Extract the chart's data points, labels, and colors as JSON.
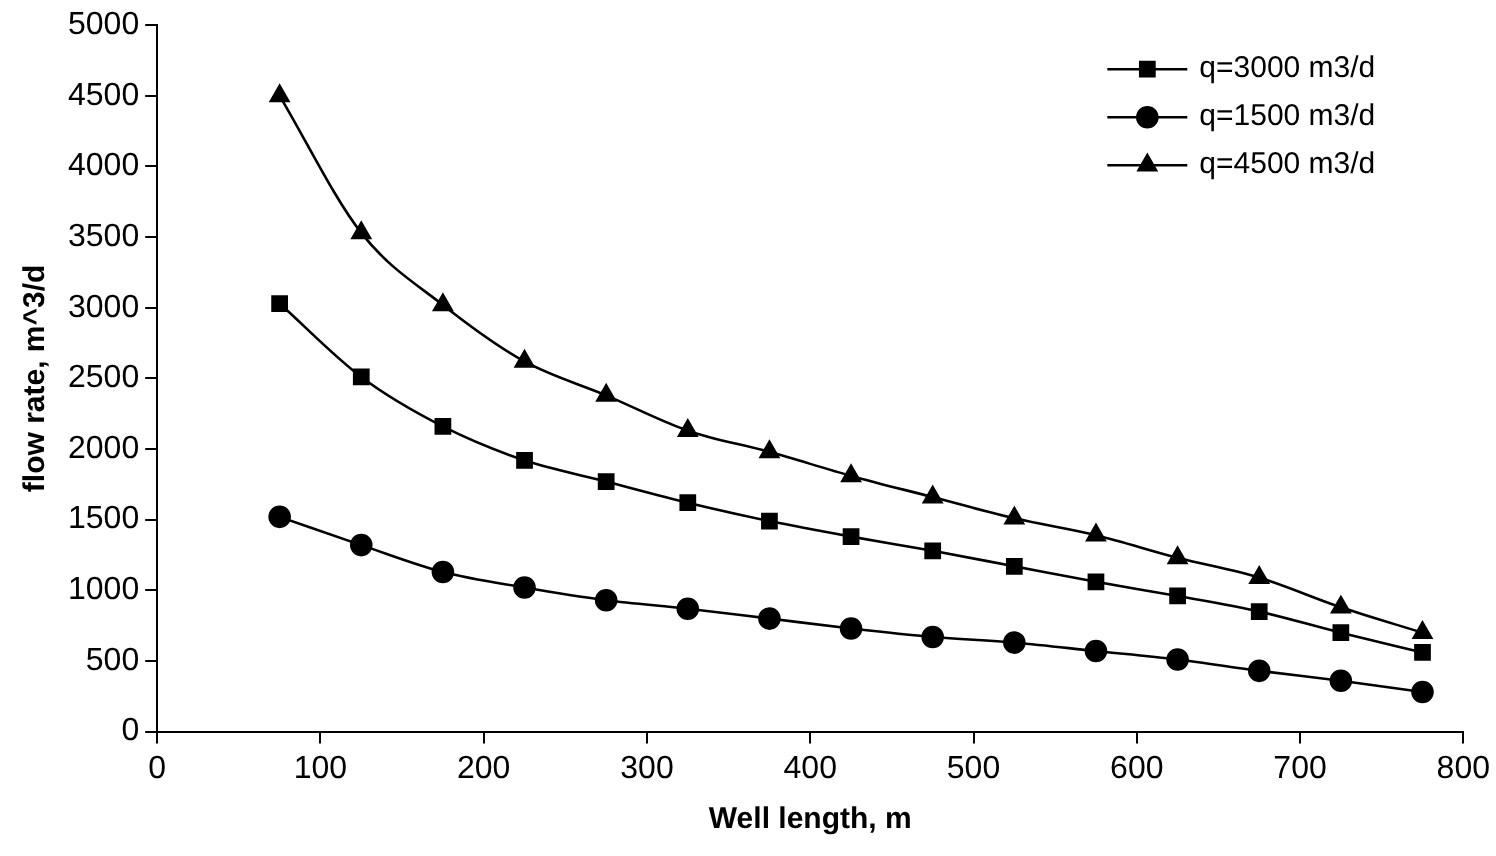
{
  "chart_data": {
    "type": "line",
    "xlabel": "Well length, m",
    "ylabel": "flow rate, m^3/d",
    "x": [
      75,
      125,
      175,
      225,
      275,
      325,
      375,
      425,
      475,
      525,
      575,
      625,
      675,
      725,
      775
    ],
    "series": [
      {
        "name": "q=3000 m3/d",
        "color": "#000000",
        "marker": "square",
        "values": [
          3030,
          2510,
          2160,
          1920,
          1770,
          1620,
          1490,
          1380,
          1280,
          1170,
          1060,
          960,
          850,
          700,
          560
        ]
      },
      {
        "name": "q=1500 m3/d",
        "color": "#000000",
        "marker": "circle",
        "values": [
          1520,
          1320,
          1130,
          1020,
          930,
          870,
          800,
          730,
          670,
          630,
          570,
          510,
          430,
          360,
          280
        ]
      },
      {
        "name": "q=4500 m3/d",
        "color": "#000000",
        "marker": "triangle",
        "values": [
          4500,
          3530,
          3020,
          2620,
          2380,
          2130,
          1980,
          1810,
          1660,
          1510,
          1390,
          1230,
          1090,
          880,
          700
        ]
      }
    ],
    "xlim": [
      0,
      800
    ],
    "xticks": [
      0,
      100,
      200,
      300,
      400,
      500,
      600,
      700,
      800
    ],
    "ylim": [
      0,
      5000
    ],
    "yticks": [
      0,
      500,
      1000,
      1500,
      2000,
      2500,
      3000,
      3500,
      4000,
      4500,
      5000
    ],
    "grid": false,
    "legend": "top right",
    "line_style": "solid"
  }
}
